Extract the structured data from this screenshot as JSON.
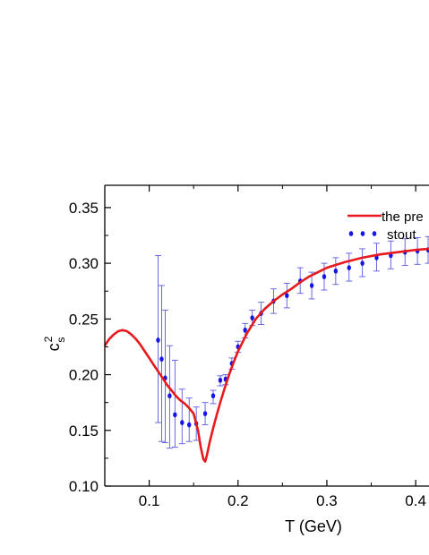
{
  "chart_data": {
    "type": "line",
    "xlabel": "T (GeV)",
    "ylabel": "c",
    "ylabel_sup": "2",
    "ylabel_sub": "s",
    "xlim": [
      0.05,
      0.415
    ],
    "ylim": [
      0.1,
      0.37
    ],
    "xticks": [
      {
        "v": 0.1,
        "label": "0.1"
      },
      {
        "v": 0.2,
        "label": "0.2"
      },
      {
        "v": 0.3,
        "label": "0.3"
      },
      {
        "v": 0.4,
        "label": "0.4"
      }
    ],
    "yticks": [
      {
        "v": 0.1,
        "label": "0.10"
      },
      {
        "v": 0.15,
        "label": "0.15"
      },
      {
        "v": 0.2,
        "label": "0.20"
      },
      {
        "v": 0.25,
        "label": "0.25"
      },
      {
        "v": 0.3,
        "label": "0.30"
      },
      {
        "v": 0.35,
        "label": "0.35"
      }
    ],
    "legend": {
      "placement": "top-right",
      "items": [
        {
          "label": "the pre",
          "style": "line",
          "color": "#e8191d"
        },
        {
          "label": "stout",
          "style": "dots",
          "color": "#1515e6"
        }
      ]
    },
    "curve": {
      "color": "#e8191d",
      "points": [
        [
          0.05,
          0.226
        ],
        [
          0.055,
          0.232
        ],
        [
          0.06,
          0.236
        ],
        [
          0.065,
          0.239
        ],
        [
          0.07,
          0.24
        ],
        [
          0.075,
          0.239
        ],
        [
          0.08,
          0.236
        ],
        [
          0.085,
          0.232
        ],
        [
          0.09,
          0.227
        ],
        [
          0.095,
          0.221
        ],
        [
          0.1,
          0.215
        ],
        [
          0.105,
          0.209
        ],
        [
          0.11,
          0.203
        ],
        [
          0.115,
          0.197
        ],
        [
          0.12,
          0.191
        ],
        [
          0.125,
          0.186
        ],
        [
          0.13,
          0.181
        ],
        [
          0.135,
          0.177
        ],
        [
          0.14,
          0.174
        ],
        [
          0.145,
          0.17
        ],
        [
          0.15,
          0.165
        ],
        [
          0.155,
          0.15
        ],
        [
          0.158,
          0.135
        ],
        [
          0.161,
          0.124
        ],
        [
          0.163,
          0.122
        ],
        [
          0.165,
          0.128
        ],
        [
          0.168,
          0.139
        ],
        [
          0.172,
          0.152
        ],
        [
          0.176,
          0.164
        ],
        [
          0.18,
          0.175
        ],
        [
          0.185,
          0.188
        ],
        [
          0.19,
          0.2
        ],
        [
          0.195,
          0.211
        ],
        [
          0.2,
          0.221
        ],
        [
          0.21,
          0.237
        ],
        [
          0.22,
          0.25
        ],
        [
          0.23,
          0.259
        ],
        [
          0.24,
          0.266
        ],
        [
          0.25,
          0.272
        ],
        [
          0.26,
          0.277
        ],
        [
          0.27,
          0.283
        ],
        [
          0.28,
          0.288
        ],
        [
          0.29,
          0.292
        ],
        [
          0.3,
          0.296
        ],
        [
          0.32,
          0.301
        ],
        [
          0.34,
          0.305
        ],
        [
          0.36,
          0.308
        ],
        [
          0.38,
          0.31
        ],
        [
          0.4,
          0.312
        ],
        [
          0.415,
          0.313
        ]
      ]
    },
    "series": [
      {
        "color": "#1515e6",
        "points": [
          {
            "x": 0.11,
            "y": 0.231,
            "lo": 0.157,
            "hi": 0.307
          },
          {
            "x": 0.114,
            "y": 0.214,
            "lo": 0.14,
            "hi": 0.28
          },
          {
            "x": 0.118,
            "y": 0.197,
            "lo": 0.139,
            "hi": 0.258
          },
          {
            "x": 0.123,
            "y": 0.181,
            "lo": 0.134,
            "hi": 0.226
          },
          {
            "x": 0.129,
            "y": 0.164,
            "lo": 0.135,
            "hi": 0.213
          },
          {
            "x": 0.137,
            "y": 0.157,
            "lo": 0.138,
            "hi": 0.187
          },
          {
            "x": 0.145,
            "y": 0.155,
            "lo": 0.14,
            "hi": 0.179
          },
          {
            "x": 0.153,
            "y": 0.156,
            "lo": 0.141,
            "hi": 0.171
          },
          {
            "x": 0.163,
            "y": 0.165,
            "lo": 0.155,
            "hi": 0.175
          },
          {
            "x": 0.172,
            "y": 0.181,
            "lo": 0.174,
            "hi": 0.186
          },
          {
            "x": 0.18,
            "y": 0.195,
            "lo": 0.19,
            "hi": 0.199
          },
          {
            "x": 0.186,
            "y": 0.196,
            "lo": 0.191,
            "hi": 0.2
          },
          {
            "x": 0.193,
            "y": 0.21,
            "lo": 0.205,
            "hi": 0.215
          },
          {
            "x": 0.2,
            "y": 0.225,
            "lo": 0.22,
            "hi": 0.23
          },
          {
            "x": 0.208,
            "y": 0.24,
            "lo": 0.233,
            "hi": 0.246
          },
          {
            "x": 0.216,
            "y": 0.251,
            "lo": 0.244,
            "hi": 0.258
          },
          {
            "x": 0.226,
            "y": 0.255,
            "lo": 0.245,
            "hi": 0.265
          },
          {
            "x": 0.24,
            "y": 0.266,
            "lo": 0.255,
            "hi": 0.277
          },
          {
            "x": 0.255,
            "y": 0.271,
            "lo": 0.26,
            "hi": 0.282
          },
          {
            "x": 0.27,
            "y": 0.284,
            "lo": 0.273,
            "hi": 0.296
          },
          {
            "x": 0.283,
            "y": 0.28,
            "lo": 0.268,
            "hi": 0.292
          },
          {
            "x": 0.297,
            "y": 0.288,
            "lo": 0.276,
            "hi": 0.3
          },
          {
            "x": 0.31,
            "y": 0.293,
            "lo": 0.281,
            "hi": 0.305
          },
          {
            "x": 0.325,
            "y": 0.296,
            "lo": 0.284,
            "hi": 0.309
          },
          {
            "x": 0.34,
            "y": 0.3,
            "lo": 0.288,
            "hi": 0.313
          },
          {
            "x": 0.356,
            "y": 0.305,
            "lo": 0.293,
            "hi": 0.318
          },
          {
            "x": 0.372,
            "y": 0.307,
            "lo": 0.295,
            "hi": 0.32
          },
          {
            "x": 0.388,
            "y": 0.31,
            "lo": 0.298,
            "hi": 0.322
          },
          {
            "x": 0.402,
            "y": 0.311,
            "lo": 0.299,
            "hi": 0.323
          },
          {
            "x": 0.414,
            "y": 0.312,
            "lo": 0.3,
            "hi": 0.324
          }
        ]
      }
    ]
  }
}
